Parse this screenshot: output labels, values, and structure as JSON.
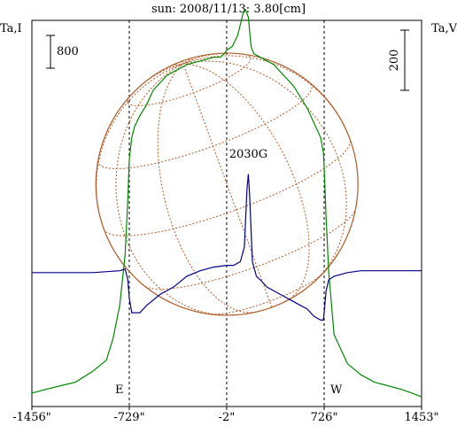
{
  "chart_data": {
    "type": "line",
    "title": "sun: 2008/11/13: 3.80[cm]",
    "left_axis_label": "Ta,I",
    "right_axis_label": "Ta,V",
    "left_scale_bar_label": "800",
    "right_scale_bar_label": "200",
    "x_tick_labels": [
      "-1456\"",
      "-729\"",
      "-2\"",
      "726\"",
      "1453\""
    ],
    "x_ticks": [
      -1456,
      -729,
      -2,
      726,
      1453
    ],
    "xlim": [
      -1456,
      1453
    ],
    "limb_markers": [
      {
        "label": "E",
        "x": -729
      },
      {
        "label": "W",
        "x": 726
      }
    ],
    "annotations": [
      {
        "text": "2030G",
        "x": 160
      }
    ],
    "colors": {
      "total_intensity": "#008800",
      "circular_polarization": "#000088",
      "solar_disk": "#b05a28",
      "axes": "#000000",
      "title": "#000066"
    },
    "series": [
      {
        "key": "I",
        "color": "#008800",
        "x": [
          -1456,
          -1350,
          -1240,
          -1130,
          -1000,
          -900,
          -850,
          -800,
          -760,
          -740,
          -729,
          -710,
          -690,
          -650,
          -600,
          -550,
          -500,
          -450,
          -400,
          -350,
          -300,
          -250,
          -200,
          -150,
          -100,
          -50,
          -20,
          0,
          40,
          80,
          100,
          120,
          140,
          160,
          180,
          200,
          250,
          300,
          350,
          400,
          450,
          500,
          550,
          600,
          650,
          700,
          720,
          726,
          740,
          760,
          800,
          900,
          1000,
          1100,
          1200,
          1300,
          1380,
          1453
        ],
        "y": [
          0.02,
          0.03,
          0.04,
          0.05,
          0.08,
          0.11,
          0.17,
          0.26,
          0.4,
          0.55,
          0.66,
          0.72,
          0.75,
          0.78,
          0.81,
          0.85,
          0.87,
          0.89,
          0.9,
          0.91,
          0.92,
          0.925,
          0.93,
          0.935,
          0.94,
          0.94,
          0.95,
          0.96,
          0.97,
          1.0,
          1.03,
          1.06,
          1.07,
          1.05,
          0.97,
          0.95,
          0.94,
          0.93,
          0.92,
          0.9,
          0.88,
          0.86,
          0.83,
          0.8,
          0.76,
          0.72,
          0.68,
          0.64,
          0.5,
          0.35,
          0.18,
          0.1,
          0.07,
          0.05,
          0.04,
          0.03,
          0.02,
          0.01
        ]
      },
      {
        "key": "V",
        "color": "#000088",
        "x": [
          -1456,
          -1200,
          -1000,
          -800,
          -760,
          -740,
          -729,
          -710,
          -700,
          -650,
          -600,
          -500,
          -400,
          -300,
          -200,
          -100,
          0,
          50,
          100,
          130,
          150,
          160,
          170,
          190,
          220,
          250,
          300,
          350,
          400,
          500,
          600,
          650,
          700,
          720,
          726,
          740,
          760,
          800,
          900,
          1000,
          1100,
          1200,
          1300,
          1453
        ],
        "y": [
          0.35,
          0.35,
          0.35,
          0.355,
          0.36,
          0.33,
          0.28,
          0.24,
          0.24,
          0.24,
          0.26,
          0.29,
          0.31,
          0.34,
          0.355,
          0.365,
          0.37,
          0.37,
          0.38,
          0.42,
          0.58,
          0.62,
          0.56,
          0.38,
          0.34,
          0.33,
          0.31,
          0.3,
          0.29,
          0.27,
          0.25,
          0.23,
          0.22,
          0.22,
          0.24,
          0.3,
          0.33,
          0.34,
          0.35,
          0.355,
          0.355,
          0.355,
          0.355,
          0.355
        ]
      }
    ],
    "disk_radius_arcsec": 978
  }
}
